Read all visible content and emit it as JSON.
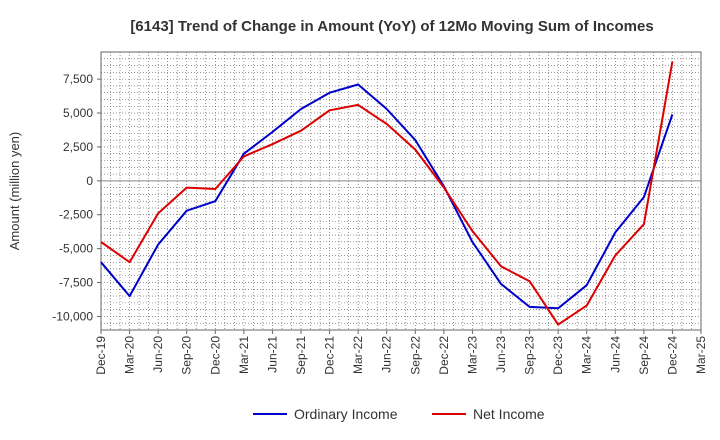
{
  "chart_data": {
    "type": "line",
    "title": "[6143]  Trend of Change in Amount (YoY) of 12Mo Moving Sum of Incomes",
    "xlabel": "",
    "ylabel": "Amount (million yen)",
    "ylim": [
      -11000,
      9500
    ],
    "y_ticks": [
      7500,
      5000,
      2500,
      0,
      -2500,
      -5000,
      -7500,
      -10000
    ],
    "y_tick_labels": [
      "7,500",
      "5,000",
      "2,500",
      "0",
      "-2,500",
      "-5,000",
      "-7,500",
      "-10,000"
    ],
    "categories": [
      "Dec-19",
      "Mar-20",
      "Jun-20",
      "Sep-20",
      "Dec-20",
      "Mar-21",
      "Jun-21",
      "Sep-21",
      "Dec-21",
      "Mar-22",
      "Jun-22",
      "Sep-22",
      "Dec-22",
      "Mar-23",
      "Jun-23",
      "Sep-23",
      "Dec-23",
      "Mar-24",
      "Jun-24",
      "Sep-24",
      "Dec-24",
      "Mar-25"
    ],
    "grid": true,
    "legend_position": "bottom",
    "series": [
      {
        "name": "Ordinary Income",
        "color": "#0000cc",
        "values": [
          -6000,
          -8500,
          -4700,
          -2200,
          -1500,
          2000,
          3600,
          5300,
          6500,
          7100,
          5300,
          3000,
          -400,
          -4500,
          -7600,
          -9300,
          -9400,
          -7700,
          -3800,
          -1200,
          4900,
          null
        ]
      },
      {
        "name": "Net Income",
        "color": "#dd0000",
        "values": [
          -4500,
          -6000,
          -2400,
          -500,
          -600,
          1800,
          2700,
          3700,
          5200,
          5600,
          4200,
          2300,
          -500,
          -3700,
          -6300,
          -7400,
          -10600,
          -9200,
          -5500,
          -3200,
          8800,
          null
        ]
      }
    ]
  }
}
